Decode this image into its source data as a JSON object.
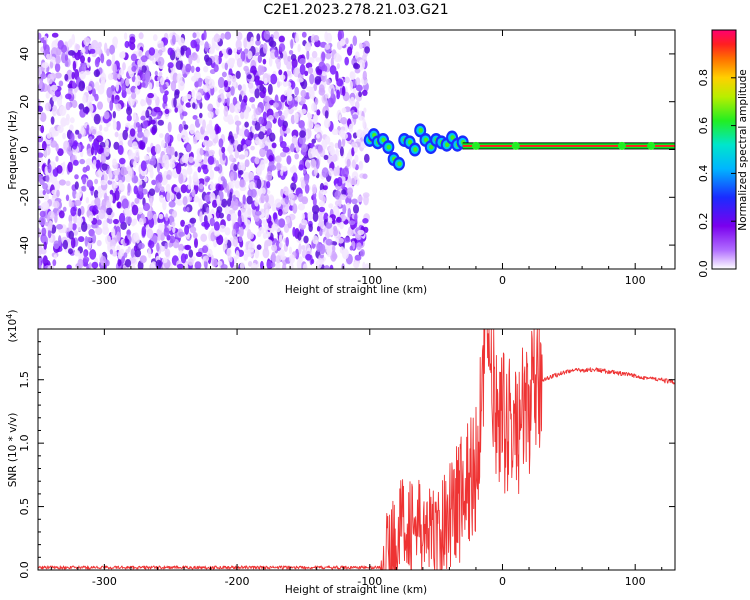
{
  "figure": {
    "title": "C2E1.2023.278.21.03.G21"
  },
  "chart_data": [
    {
      "type": "heatmap",
      "panel": "spectrogram",
      "xlabel": "Height of straight line (km)",
      "ylabel": "Frequency (Hz)",
      "xlim": [
        -350,
        130
      ],
      "ylim": [
        -50,
        50
      ],
      "x_ticks": [
        -300,
        -200,
        -100,
        0,
        100
      ],
      "y_ticks": [
        -40,
        -20,
        0,
        20,
        40
      ],
      "x_tick_labels": [
        "-300",
        "-200",
        "-100",
        "0",
        "100"
      ],
      "y_tick_labels": [
        "-40",
        "-20",
        "0",
        "20",
        "40"
      ],
      "regions": [
        {
          "name": "noise",
          "x_range": [
            -350,
            -102
          ],
          "freq_range": [
            -50,
            48
          ],
          "amplitude": 0.05
        },
        {
          "name": "carrier-onset",
          "x_range": [
            -102,
            -30
          ],
          "freq_center": [
            4,
            3,
            -5,
            4,
            6,
            2
          ],
          "amplitude": 0.35
        },
        {
          "name": "carrier",
          "x_range": [
            -30,
            130
          ],
          "freq_center": 1.5,
          "amplitude": 0.9
        }
      ],
      "colorbar": {
        "label": "Normalized spectral amplitude",
        "range": [
          0,
          1
        ],
        "ticks": [
          0.0,
          0.2,
          0.4,
          0.6,
          0.8
        ],
        "tick_labels": [
          "0.0",
          "0.2",
          "0.4",
          "0.6",
          "0.8"
        ]
      }
    },
    {
      "type": "line",
      "panel": "snr",
      "xlabel": "Height of straight line (km)",
      "ylabel": "SNR (10 * v/v)",
      "y_multiplier_label": "(x10",
      "y_multiplier_exp": "4",
      "xlim": [
        -350,
        130
      ],
      "ylim": [
        0,
        1.9
      ],
      "x_ticks": [
        -300,
        -200,
        -100,
        0,
        100
      ],
      "y_ticks": [
        0.0,
        0.5,
        1.0,
        1.5
      ],
      "x_tick_labels": [
        "-300",
        "-200",
        "-100",
        "0",
        "100"
      ],
      "y_tick_labels": [
        "0.0",
        "0.5",
        "1.0",
        "1.5"
      ],
      "color": "#ee3333",
      "series_points": [
        {
          "x": -350,
          "y": 0.02
        },
        {
          "x": -200,
          "y": 0.03
        },
        {
          "x": -100,
          "y": 0.02
        },
        {
          "x": -90,
          "y": 0.05
        },
        {
          "x": -75,
          "y": 0.4
        },
        {
          "x": -60,
          "y": 0.3
        },
        {
          "x": -50,
          "y": 0.25
        },
        {
          "x": -40,
          "y": 0.45
        },
        {
          "x": -30,
          "y": 0.6
        },
        {
          "x": -20,
          "y": 0.8
        },
        {
          "x": -12,
          "y": 1.9
        },
        {
          "x": -5,
          "y": 1.2
        },
        {
          "x": 10,
          "y": 1.1
        },
        {
          "x": 20,
          "y": 1.3
        },
        {
          "x": 30,
          "y": 1.5
        },
        {
          "x": 50,
          "y": 1.57
        },
        {
          "x": 70,
          "y": 1.58
        },
        {
          "x": 100,
          "y": 1.53
        },
        {
          "x": 130,
          "y": 1.48
        }
      ]
    }
  ]
}
